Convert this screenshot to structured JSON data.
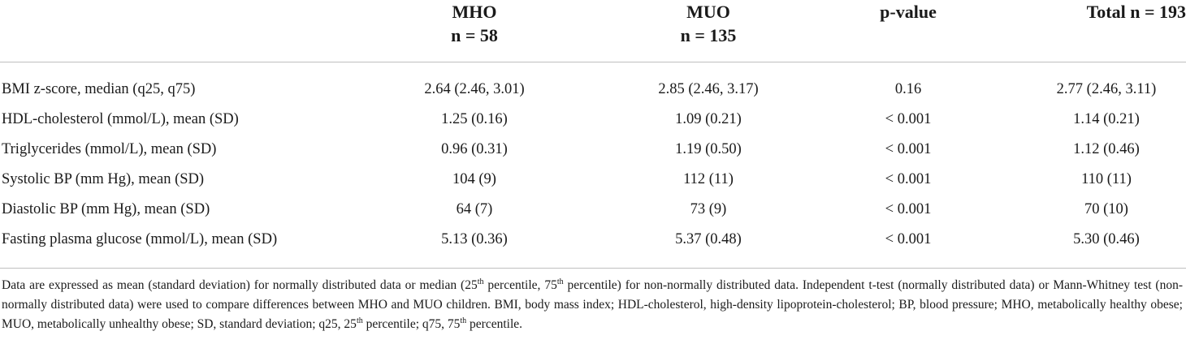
{
  "header": {
    "mho_title": "MHO",
    "mho_n": "n = 58",
    "muo_title": "MUO",
    "muo_n": "n = 135",
    "pvalue_title": "p-value",
    "total_title": "Total n = 193"
  },
  "rows": [
    {
      "label": "BMI z-score, median (q25, q75)",
      "mho": "2.64 (2.46, 3.01)",
      "muo": "2.85 (2.46, 3.17)",
      "p": "0.16",
      "total": "2.77 (2.46, 3.11)"
    },
    {
      "label": "HDL-cholesterol (mmol/L), mean (SD)",
      "mho": "1.25 (0.16)",
      "muo": "1.09 (0.21)",
      "p": "< 0.001",
      "total": "1.14 (0.21)"
    },
    {
      "label": "Triglycerides (mmol/L), mean (SD)",
      "mho": "0.96 (0.31)",
      "muo": "1.19 (0.50)",
      "p": "< 0.001",
      "total": "1.12 (0.46)"
    },
    {
      "label": "Systolic BP (mm Hg), mean (SD)",
      "mho": "104 (9)",
      "muo": "112 (11)",
      "p": "< 0.001",
      "total": "110 (11)"
    },
    {
      "label": "Diastolic BP (mm Hg), mean (SD)",
      "mho": "64 (7)",
      "muo": "73 (9)",
      "p": "< 0.001",
      "total": "70 (10)"
    },
    {
      "label": "Fasting plasma glucose (mmol/L), mean (SD)",
      "mho": "5.13 (0.36)",
      "muo": "5.37 (0.48)",
      "p": "< 0.001",
      "total": "5.30 (0.46)"
    }
  ],
  "footnote": {
    "p1": "Data are expressed as mean (standard deviation) for normally distributed data or median (25",
    "sup1": "th",
    "p2": " percentile, 75",
    "sup2": "th",
    "p3": " percentile) for non-normally distributed data. Independent t-test (normally distributed data) or Mann-Whitney test (non-normally distributed data) were used to compare differences between MHO and MUO children. BMI, body mass index; HDL-cholesterol, high-density lipoprotein-cholesterol; BP, blood pressure; MHO, metabolically healthy obese; MUO, metabolically unhealthy obese; SD, standard deviation; q25, 25",
    "sup3": "th",
    "p4": " percentile; q75, 75",
    "sup4": "th",
    "p5": " percentile."
  }
}
